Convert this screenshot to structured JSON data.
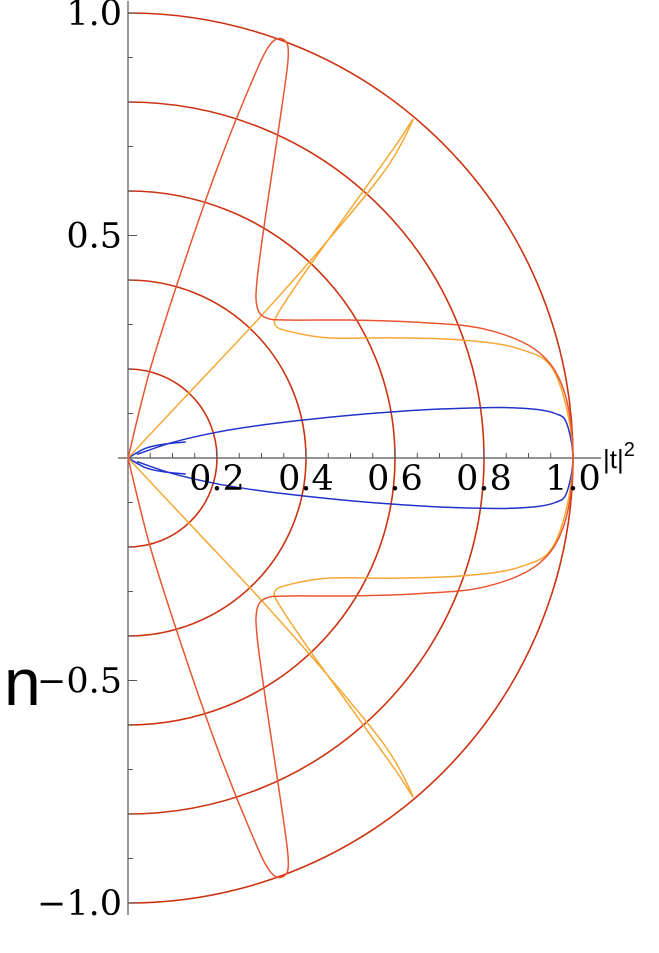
{
  "chart_data": {
    "type": "polar-line",
    "xlabel": "|t|",
    "xlabel_superscript": "2",
    "side_glyph": "n",
    "x_ticks": [
      {
        "value": 0.2,
        "label": "0.2"
      },
      {
        "value": 0.4,
        "label": "0.4"
      },
      {
        "value": 0.6,
        "label": "0.6"
      },
      {
        "value": 0.8,
        "label": "0.8"
      },
      {
        "value": 1.0,
        "label": "1.0"
      }
    ],
    "y_ticks": [
      {
        "value": 1.0,
        "label": "1.0"
      },
      {
        "value": 0.5,
        "label": "0.5"
      },
      {
        "value": -0.5,
        "label": "−0.5"
      },
      {
        "value": -1.0,
        "label": "−1.0"
      }
    ],
    "xlim": [
      0,
      1.0
    ],
    "ylim": [
      -1.0,
      1.0
    ],
    "grid_circles": {
      "radii": [
        0.2,
        0.4,
        0.6,
        0.8,
        1.0
      ],
      "color": "#cc3311"
    },
    "series": [
      {
        "color": "#2233cc",
        "points": [
          [
            0.02,
            0.008
          ],
          [
            0.1,
            0.035
          ],
          [
            0.2,
            0.058
          ],
          [
            0.3,
            0.074
          ],
          [
            0.4,
            0.086
          ],
          [
            0.5,
            0.096
          ],
          [
            0.6,
            0.104
          ],
          [
            0.7,
            0.11
          ],
          [
            0.8,
            0.113
          ],
          [
            0.86,
            0.113
          ],
          [
            0.92,
            0.109
          ],
          [
            0.96,
            0.1
          ],
          [
            0.985,
            0.08
          ],
          [
            1.0,
            0.0
          ],
          [
            0.985,
            -0.08
          ],
          [
            0.96,
            -0.1
          ],
          [
            0.92,
            -0.109
          ],
          [
            0.86,
            -0.113
          ],
          [
            0.8,
            -0.113
          ],
          [
            0.7,
            -0.11
          ],
          [
            0.6,
            -0.104
          ],
          [
            0.5,
            -0.096
          ],
          [
            0.4,
            -0.086
          ],
          [
            0.3,
            -0.074
          ],
          [
            0.2,
            -0.058
          ],
          [
            0.1,
            -0.035
          ],
          [
            0.02,
            -0.008
          ]
        ]
      },
      {
        "color": "#2233cc",
        "points": [
          [
            0.0,
            0.0
          ],
          [
            0.04,
            0.022
          ],
          [
            0.08,
            0.031
          ],
          [
            0.13,
            0.036
          ]
        ]
      },
      {
        "color": "#2233cc",
        "points": [
          [
            0.0,
            0.0
          ],
          [
            0.04,
            -0.022
          ],
          [
            0.08,
            -0.031
          ],
          [
            0.13,
            -0.036
          ]
        ]
      },
      {
        "color": "#f5a833",
        "points": [
          [
            0.0,
            0.0
          ],
          [
            0.15,
            0.16
          ],
          [
            0.3,
            0.32
          ],
          [
            0.45,
            0.49
          ],
          [
            0.58,
            0.65
          ],
          [
            0.64,
            0.76
          ],
          [
            0.6,
            0.7
          ],
          [
            0.5,
            0.56
          ],
          [
            0.4,
            0.42
          ],
          [
            0.34,
            0.33
          ],
          [
            0.33,
            0.3
          ],
          [
            0.36,
            0.285
          ],
          [
            0.45,
            0.27
          ],
          [
            0.6,
            0.27
          ],
          [
            0.75,
            0.265
          ],
          [
            0.88,
            0.245
          ],
          [
            0.96,
            0.19
          ],
          [
            1.0,
            0.0
          ],
          [
            0.96,
            -0.19
          ],
          [
            0.88,
            -0.245
          ],
          [
            0.75,
            -0.265
          ],
          [
            0.6,
            -0.27
          ],
          [
            0.45,
            -0.27
          ],
          [
            0.36,
            -0.285
          ],
          [
            0.33,
            -0.3
          ],
          [
            0.34,
            -0.33
          ],
          [
            0.4,
            -0.42
          ],
          [
            0.5,
            -0.56
          ],
          [
            0.6,
            -0.7
          ],
          [
            0.64,
            -0.76
          ],
          [
            0.58,
            -0.65
          ],
          [
            0.45,
            -0.49
          ],
          [
            0.3,
            -0.32
          ],
          [
            0.15,
            -0.16
          ],
          [
            0.0,
            0.0
          ]
        ]
      },
      {
        "color": "#e8552f",
        "points": [
          [
            0.0,
            0.0
          ],
          [
            0.05,
            0.2
          ],
          [
            0.12,
            0.42
          ],
          [
            0.2,
            0.65
          ],
          [
            0.28,
            0.85
          ],
          [
            0.32,
            0.93
          ],
          [
            0.35,
            0.94
          ],
          [
            0.36,
            0.9
          ],
          [
            0.34,
            0.75
          ],
          [
            0.31,
            0.55
          ],
          [
            0.29,
            0.4
          ],
          [
            0.29,
            0.34
          ],
          [
            0.31,
            0.315
          ],
          [
            0.36,
            0.31
          ],
          [
            0.5,
            0.31
          ],
          [
            0.65,
            0.305
          ],
          [
            0.8,
            0.29
          ],
          [
            0.92,
            0.24
          ],
          [
            0.98,
            0.15
          ],
          [
            1.0,
            0.0
          ],
          [
            0.98,
            -0.15
          ],
          [
            0.92,
            -0.24
          ],
          [
            0.8,
            -0.29
          ],
          [
            0.65,
            -0.305
          ],
          [
            0.5,
            -0.31
          ],
          [
            0.36,
            -0.31
          ],
          [
            0.31,
            -0.315
          ],
          [
            0.29,
            -0.34
          ],
          [
            0.29,
            -0.4
          ],
          [
            0.31,
            -0.55
          ],
          [
            0.34,
            -0.75
          ],
          [
            0.36,
            -0.9
          ],
          [
            0.35,
            -0.94
          ],
          [
            0.32,
            -0.93
          ],
          [
            0.28,
            -0.85
          ],
          [
            0.2,
            -0.65
          ],
          [
            0.12,
            -0.42
          ],
          [
            0.05,
            -0.2
          ],
          [
            0.0,
            0.0
          ]
        ]
      }
    ]
  }
}
